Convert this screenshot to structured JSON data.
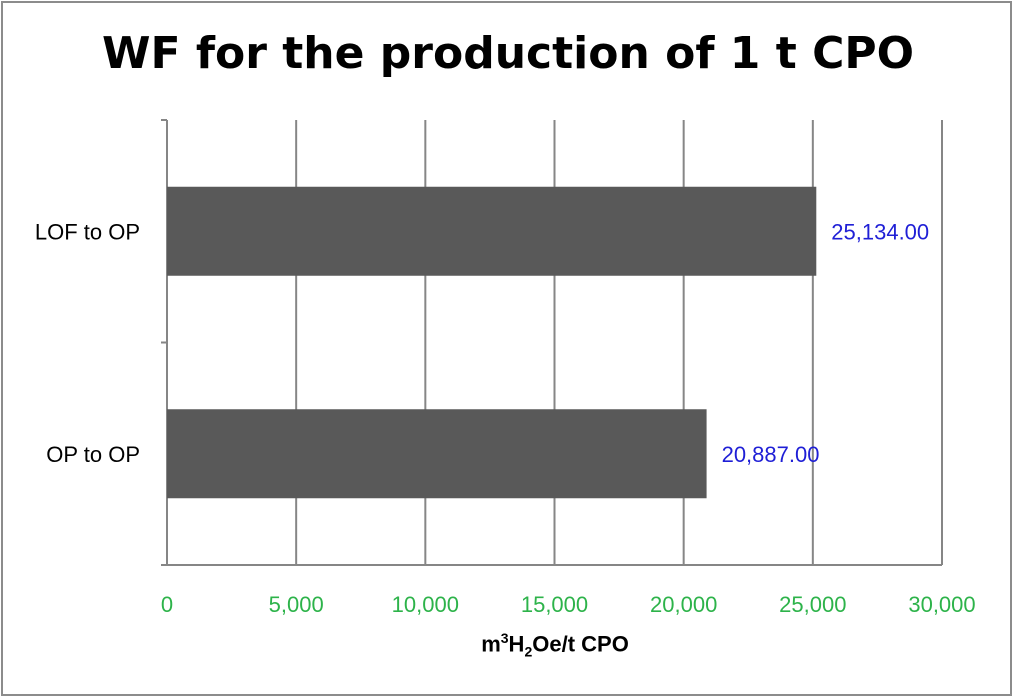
{
  "chart_data": {
    "type": "bar",
    "orientation": "horizontal",
    "title": "WF for the production of 1 t CPO",
    "categories": [
      "LOF to OP",
      "OP to OP"
    ],
    "values": [
      25134.0,
      20887.0
    ],
    "data_labels": [
      "25,134.00",
      "20,887.00"
    ],
    "xlabel_parts": {
      "a": "m",
      "sup": "3",
      "b": "H",
      "sub": "2",
      "c": "Oe/t CPO"
    },
    "xlim": [
      0,
      30000
    ],
    "x_ticks": [
      0,
      5000,
      10000,
      15000,
      20000,
      25000,
      30000
    ],
    "x_tick_labels": [
      "0",
      "5,000",
      "10,000",
      "15,000",
      "20,000",
      "25,000",
      "30,000"
    ],
    "grid": "vertical",
    "legend": "none",
    "colors": {
      "bar": "#595959",
      "grid": "#868686",
      "tick_label": "#2db34a",
      "data_label": "#1f1fd6"
    }
  }
}
